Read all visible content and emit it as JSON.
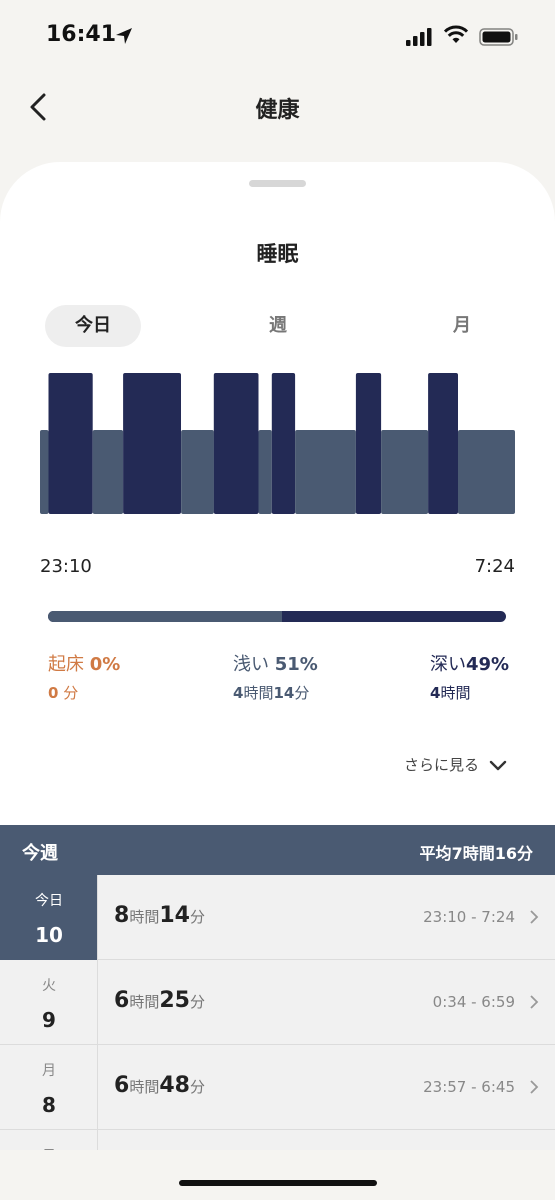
{
  "status_bar": {
    "time": "16:41"
  },
  "nav": {
    "title": "健康"
  },
  "sheet": {
    "title": "睡眠",
    "tabs": [
      {
        "label": "今日",
        "active": true
      },
      {
        "label": "週",
        "active": false
      },
      {
        "label": "月",
        "active": false
      }
    ],
    "chart": {
      "start_time": "23:10",
      "end_time": "7:24",
      "colors": {
        "deep": "#232a55",
        "light": "#4a5a72",
        "awake": "#d07a44"
      }
    },
    "stats": {
      "awake": {
        "label": "起床",
        "percent": "0%",
        "duration_num": "0",
        "duration_unit": "分"
      },
      "light": {
        "label": "浅い",
        "percent": "51%",
        "hours": "4",
        "hours_unit": "時間",
        "minutes": "14",
        "minutes_unit": "分"
      },
      "deep": {
        "label": "深い",
        "percent": "49%",
        "hours": "4",
        "hours_unit": "時間"
      }
    },
    "more_label": "さらに見る"
  },
  "chart_data": {
    "type": "bar",
    "title": "",
    "x_range": [
      "23:10",
      "7:24"
    ],
    "levels": [
      "light",
      "deep"
    ],
    "segments": [
      {
        "stage": "light",
        "start": 0.0,
        "end": 0.018
      },
      {
        "stage": "deep",
        "start": 0.018,
        "end": 0.111
      },
      {
        "stage": "light",
        "start": 0.111,
        "end": 0.175
      },
      {
        "stage": "deep",
        "start": 0.175,
        "end": 0.297
      },
      {
        "stage": "light",
        "start": 0.297,
        "end": 0.366
      },
      {
        "stage": "deep",
        "start": 0.366,
        "end": 0.46
      },
      {
        "stage": "light",
        "start": 0.46,
        "end": 0.488
      },
      {
        "stage": "deep",
        "start": 0.488,
        "end": 0.537
      },
      {
        "stage": "light",
        "start": 0.537,
        "end": 0.665
      },
      {
        "stage": "deep",
        "start": 0.665,
        "end": 0.718
      },
      {
        "stage": "light",
        "start": 0.718,
        "end": 0.817
      },
      {
        "stage": "deep",
        "start": 0.817,
        "end": 0.88
      },
      {
        "stage": "light",
        "start": 0.88,
        "end": 1.0
      }
    ],
    "proportions": {
      "awake": 0,
      "light": 51,
      "deep": 49
    }
  },
  "week": {
    "title": "今週",
    "avg_label": "平均",
    "avg_hours": "7",
    "avg_hours_unit": "時間",
    "avg_minutes": "16",
    "avg_minutes_unit": "分",
    "rows": [
      {
        "weekday": "今日",
        "day": "10",
        "hours": "8",
        "minutes": "14",
        "range": "23:10 - 7:24",
        "active": true
      },
      {
        "weekday": "火",
        "day": "9",
        "hours": "6",
        "minutes": "25",
        "range": "0:34 - 6:59",
        "active": false
      },
      {
        "weekday": "月",
        "day": "8",
        "hours": "6",
        "minutes": "48",
        "range": "23:57 - 6:45",
        "active": false
      },
      {
        "weekday": "日",
        "day": "",
        "hours": "",
        "minutes": "",
        "range": "",
        "active": false
      }
    ],
    "hours_unit": "時間",
    "minutes_unit": "分"
  }
}
